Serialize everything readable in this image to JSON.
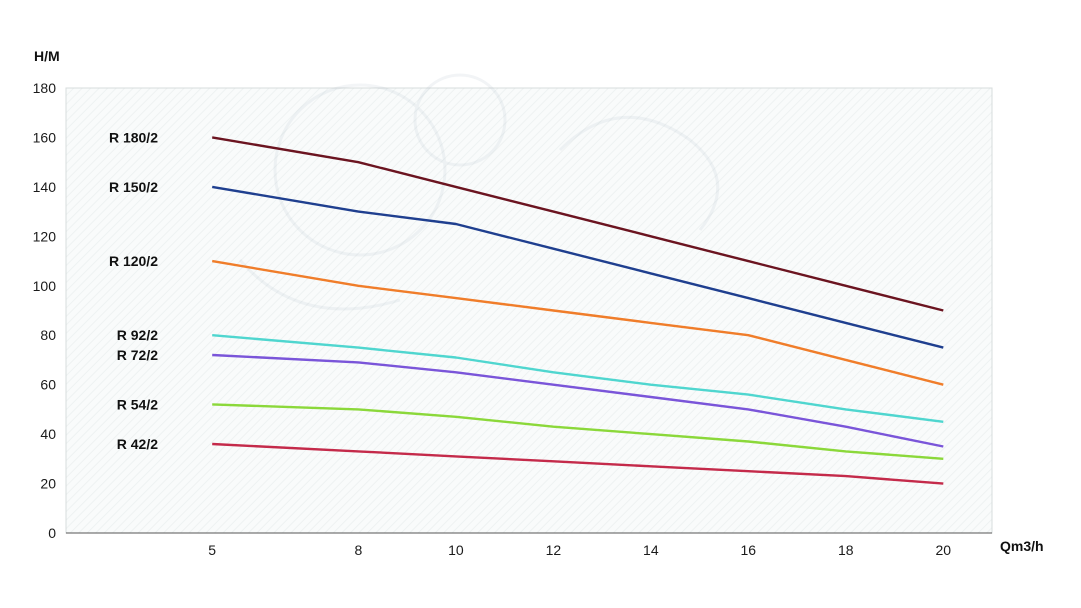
{
  "chart_data": {
    "type": "line",
    "ylabel": "H/M",
    "xlabel": "Qm3/h",
    "x_ticks": [
      5,
      8,
      10,
      12,
      14,
      16,
      18,
      20
    ],
    "y_ticks": [
      0,
      20,
      40,
      60,
      80,
      100,
      120,
      140,
      160,
      180
    ],
    "xlim": [
      2,
      21
    ],
    "ylim": [
      0,
      180
    ],
    "grid": false,
    "legend": "inline-left",
    "series": [
      {
        "name": "R 180/2",
        "color": "#6b1420",
        "x": [
          5,
          8,
          10,
          12,
          14,
          16,
          18,
          20
        ],
        "y": [
          160,
          150,
          140,
          130,
          120,
          110,
          100,
          90
        ]
      },
      {
        "name": "R 150/2",
        "color": "#1f3f8f",
        "x": [
          5,
          8,
          10,
          12,
          14,
          16,
          18,
          20
        ],
        "y": [
          140,
          130,
          125,
          115,
          105,
          95,
          85,
          75
        ]
      },
      {
        "name": "R 120/2",
        "color": "#f07d2a",
        "x": [
          5,
          8,
          10,
          12,
          14,
          16,
          18,
          20
        ],
        "y": [
          110,
          100,
          95,
          90,
          85,
          80,
          70,
          60
        ]
      },
      {
        "name": "R 92/2",
        "color": "#4fd6cf",
        "x": [
          5,
          8,
          10,
          12,
          14,
          16,
          18,
          20
        ],
        "y": [
          80,
          75,
          71,
          65,
          60,
          56,
          50,
          45
        ]
      },
      {
        "name": "R 72/2",
        "color": "#7a55d9",
        "x": [
          5,
          8,
          10,
          12,
          14,
          16,
          18,
          20
        ],
        "y": [
          72,
          69,
          65,
          60,
          55,
          50,
          43,
          35
        ]
      },
      {
        "name": "R 54/2",
        "color": "#8bd83a",
        "x": [
          5,
          8,
          10,
          12,
          14,
          16,
          18,
          20
        ],
        "y": [
          52,
          50,
          47,
          43,
          40,
          37,
          33,
          30
        ]
      },
      {
        "name": "R 42/2",
        "color": "#c42a4a",
        "x": [
          5,
          8,
          10,
          12,
          14,
          16,
          18,
          20
        ],
        "y": [
          36,
          33,
          31,
          29,
          27,
          25,
          23,
          20
        ]
      }
    ]
  }
}
